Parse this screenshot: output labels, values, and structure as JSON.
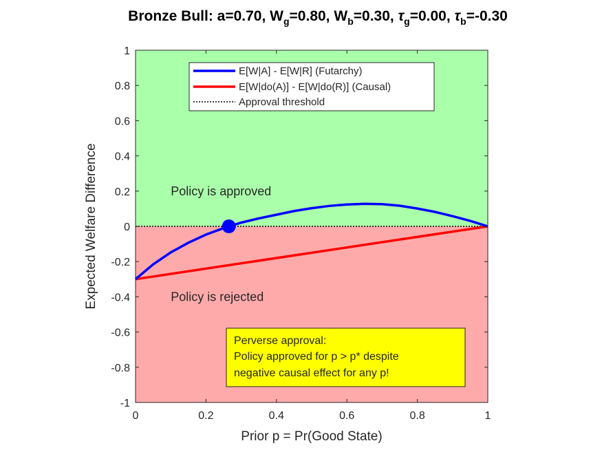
{
  "chart_data": {
    "type": "line",
    "title": {
      "prefix": "Bronze  Bull:  a=0.70,  W",
      "wg_sub": "g",
      "wg_val": "=0.80,  W",
      "wb_sub": "b",
      "wb_val": "=0.30,  ",
      "tau_g_sym": "τ",
      "tau_g_sub": "g",
      "tau_g_val": "=0.00,  ",
      "tau_b_sym": "τ",
      "tau_b_sub": "b",
      "tau_b_val": "=-0.30"
    },
    "xlabel": "Prior p = Pr(Good State)",
    "ylabel": "Expected Welfare Difference",
    "xlim": [
      0,
      1
    ],
    "ylim": [
      -1,
      1
    ],
    "xticks": [
      "0",
      "0.2",
      "0.4",
      "0.6",
      "0.8",
      "1"
    ],
    "yticks": [
      "-1",
      "-0.8",
      "-0.6",
      "-0.4",
      "-0.2",
      "0",
      "0.2",
      "0.4",
      "0.6",
      "0.8",
      "1"
    ],
    "grid": false,
    "legend_position": "top-center",
    "regions": [
      {
        "label": "Policy is approved",
        "y_range": [
          0,
          1
        ],
        "color": "#aaffaa"
      },
      {
        "label": "Policy is rejected",
        "y_range": [
          -1,
          0
        ],
        "color": "#ffaaaa"
      }
    ],
    "series": [
      {
        "name": "E[W|A] - E[W|R] (Futarchy)",
        "color": "#0000ff",
        "x": [
          0,
          0.05,
          0.1,
          0.15,
          0.2,
          0.25,
          0.3,
          0.35,
          0.4,
          0.45,
          0.5,
          0.55,
          0.6,
          0.65,
          0.7,
          0.75,
          0.8,
          0.85,
          0.9,
          0.95,
          1
        ],
        "values": [
          -0.3,
          -0.216,
          -0.148,
          -0.093,
          -0.047,
          -0.01,
          0.021,
          0.045,
          0.066,
          0.087,
          0.103,
          0.116,
          0.124,
          0.128,
          0.126,
          0.117,
          0.101,
          0.082,
          0.058,
          0.031,
          0
        ]
      },
      {
        "name": "E[W|do(A)] - E[W|do(R)] (Causal)",
        "color": "#ff0000",
        "x": [
          0,
          1
        ],
        "values": [
          -0.3,
          0
        ]
      },
      {
        "name": "Approval threshold",
        "color": "#000000",
        "style": "dotted",
        "x": [
          0,
          1
        ],
        "values": [
          0,
          0
        ]
      }
    ],
    "marker": {
      "x": 0.265,
      "y": 0,
      "color": "#0000ff"
    },
    "annotation": {
      "lines": [
        "Perverse approval:",
        "Policy approved for p > p* despite",
        "negative causal effect for any p!"
      ],
      "background": "#ffff00"
    }
  }
}
